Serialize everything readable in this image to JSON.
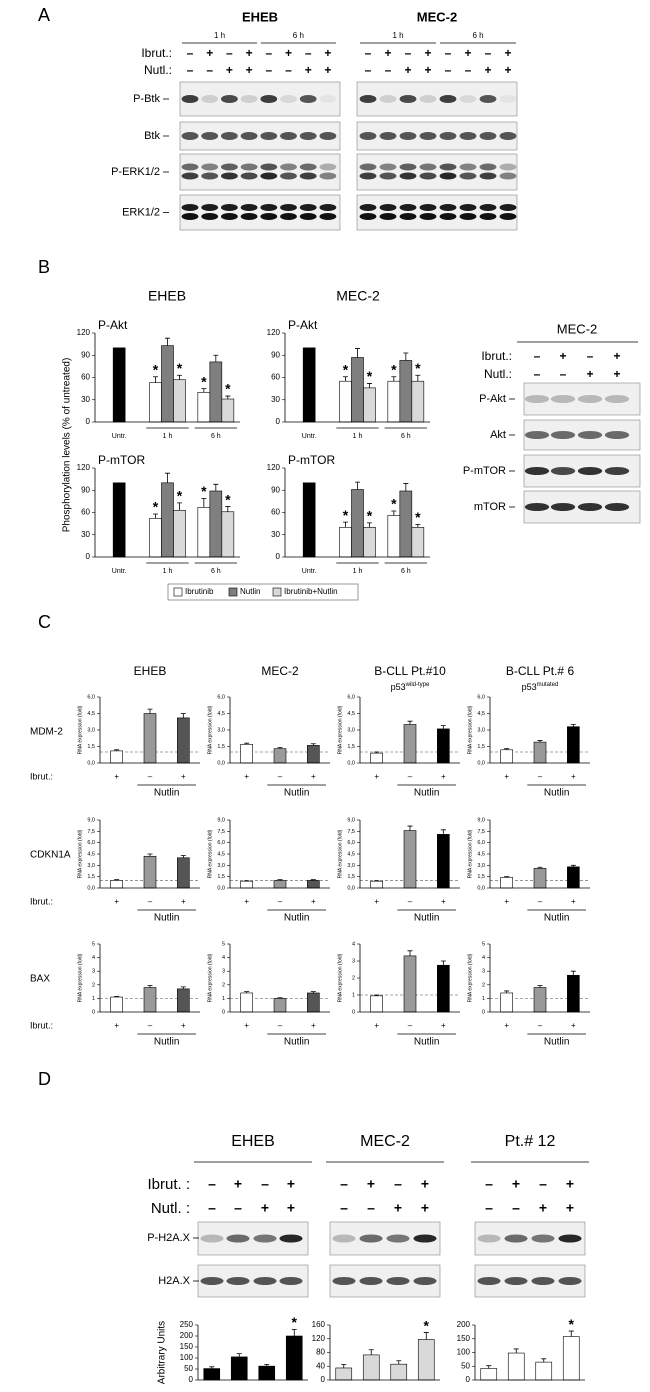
{
  "figure": {
    "significance_mark": "*",
    "panel_a": {
      "letter": "A",
      "cell_lines": [
        "EHEB",
        "MEC-2"
      ],
      "times": [
        "1 h",
        "6 h"
      ],
      "rows": [
        {
          "label": "Ibrut.:",
          "signs": [
            "–",
            "+",
            "–",
            "+",
            "–",
            "+",
            "–",
            "+"
          ]
        },
        {
          "label": "Nutl.:",
          "signs": [
            "–",
            "–",
            "+",
            "+",
            "–",
            "–",
            "+",
            "+"
          ]
        }
      ],
      "blots": [
        "P-Btk",
        "Btk",
        "P-ERK1/2",
        "ERK1/2"
      ]
    },
    "panel_b": {
      "letter": "B",
      "cell_lines": [
        "EHEB",
        "MEC-2"
      ],
      "y_label": "Phosphorylation levels (% of untreated)",
      "blot": {
        "title": "MEC-2",
        "rows": [
          {
            "label": "Ibrut.:",
            "signs": [
              "–",
              "+",
              "–",
              "+"
            ]
          },
          {
            "label": "Nutl.:",
            "signs": [
              "–",
              "–",
              "+",
              "+"
            ]
          }
        ],
        "blots": [
          "P-Akt",
          "Akt",
          "P-mTOR",
          "mTOR"
        ]
      }
    },
    "panel_c": {
      "letter": "C",
      "columns": [
        {
          "title": "EHEB"
        },
        {
          "title": "MEC-2"
        },
        {
          "title": "B-CLL Pt.#10",
          "subtitle": "p53",
          "subtitle_sup": "wild-type"
        },
        {
          "title": "B-CLL Pt.# 6",
          "subtitle": "p53",
          "subtitle_sup": "mutated"
        }
      ],
      "genes": [
        "MDM-2",
        "CDKN1A",
        "BAX"
      ],
      "row_label": "Ibrut.:"
    },
    "panel_d": {
      "letter": "D",
      "cell_lines": [
        "EHEB",
        "MEC-2",
        "Pt.# 12"
      ],
      "rows": [
        {
          "label": "Ibrut. :",
          "signs": [
            "–",
            "+",
            "–",
            "+"
          ]
        },
        {
          "label": "Nutl. :",
          "signs": [
            "–",
            "–",
            "+",
            "+"
          ]
        }
      ],
      "blots": [
        "P-H2A.X",
        "H2A.X"
      ]
    }
  },
  "chart_data": [
    {
      "type": "bar",
      "title": "P-Akt",
      "categories": [
        "Untr.",
        "1 h",
        "6 h"
      ],
      "ylim": [
        0,
        120
      ],
      "yticks": [
        0,
        30,
        60,
        90,
        120
      ],
      "series": [
        {
          "color": "#000000",
          "values": [
            100,
            null,
            null
          ]
        },
        {
          "name": "Ibrutinib",
          "color": "#ffffff",
          "values": [
            null,
            53,
            40
          ],
          "errors": [
            null,
            8,
            5
          ],
          "significant": [
            false,
            true,
            true
          ]
        },
        {
          "name": "Nutlin",
          "color": "#7f7f7f",
          "values": [
            null,
            103,
            81
          ],
          "errors": [
            null,
            10,
            9
          ]
        },
        {
          "name": "Ibrutinib+Nutlin",
          "color": "#d9d9d9",
          "values": [
            null,
            57,
            31
          ],
          "errors": [
            null,
            6,
            4
          ],
          "significant": [
            false,
            true,
            true
          ]
        }
      ]
    },
    {
      "type": "bar",
      "title": "P-Akt",
      "categories": [
        "Untr.",
        "1 h",
        "6 h"
      ],
      "ylim": [
        0,
        120
      ],
      "yticks": [
        0,
        30,
        60,
        90,
        120
      ],
      "series": [
        {
          "color": "#000000",
          "values": [
            100,
            null,
            null
          ]
        },
        {
          "name": "Ibrutinib",
          "color": "#ffffff",
          "values": [
            null,
            55,
            55
          ],
          "errors": [
            null,
            6,
            6
          ],
          "significant": [
            false,
            true,
            true
          ]
        },
        {
          "name": "Nutlin",
          "color": "#7f7f7f",
          "values": [
            null,
            87,
            83
          ],
          "errors": [
            null,
            12,
            10
          ]
        },
        {
          "name": "Ibrutinib+Nutlin",
          "color": "#d9d9d9",
          "values": [
            null,
            46,
            55
          ],
          "errors": [
            null,
            6,
            8
          ],
          "significant": [
            false,
            true,
            true
          ]
        }
      ]
    },
    {
      "type": "bar",
      "title": "P-mTOR",
      "categories": [
        "Untr.",
        "1 h",
        "6 h"
      ],
      "ylim": [
        0,
        120
      ],
      "yticks": [
        0,
        30,
        60,
        90,
        120
      ],
      "series": [
        {
          "color": "#000000",
          "values": [
            100,
            null,
            null
          ]
        },
        {
          "name": "Ibrutinib",
          "color": "#ffffff",
          "values": [
            null,
            52,
            67
          ],
          "errors": [
            null,
            6,
            12
          ],
          "significant": [
            false,
            true,
            true
          ]
        },
        {
          "name": "Nutlin",
          "color": "#7f7f7f",
          "values": [
            null,
            100,
            89
          ],
          "errors": [
            null,
            13,
            9
          ]
        },
        {
          "name": "Ibrutinib+Nutlin",
          "color": "#d9d9d9",
          "values": [
            null,
            63,
            61
          ],
          "errors": [
            null,
            10,
            7
          ],
          "significant": [
            false,
            true,
            true
          ]
        }
      ]
    },
    {
      "type": "bar",
      "title": "P-mTOR",
      "categories": [
        "Untr.",
        "1 h",
        "6 h"
      ],
      "ylim": [
        0,
        120
      ],
      "yticks": [
        0,
        30,
        60,
        90,
        120
      ],
      "series": [
        {
          "color": "#000000",
          "values": [
            100,
            null,
            null
          ]
        },
        {
          "name": "Ibrutinib",
          "color": "#ffffff",
          "values": [
            null,
            40,
            56
          ],
          "errors": [
            null,
            7,
            6
          ],
          "significant": [
            false,
            true,
            true
          ]
        },
        {
          "name": "Nutlin",
          "color": "#7f7f7f",
          "values": [
            null,
            91,
            89
          ],
          "errors": [
            null,
            10,
            10
          ]
        },
        {
          "name": "Ibrutinib+Nutlin",
          "color": "#d9d9d9",
          "values": [
            null,
            40,
            40
          ],
          "errors": [
            null,
            6,
            4
          ],
          "significant": [
            false,
            true,
            true
          ]
        }
      ]
    },
    {
      "type": "bar",
      "ylabel": "RNA expression (fold)",
      "categories": [
        "+",
        "–",
        "+"
      ],
      "group_label": "Nutlin",
      "reference_line": 1,
      "ylim": [
        0,
        6
      ],
      "yticks": [
        {
          "value": 0,
          "label": "0,0"
        },
        {
          "value": 1.5,
          "label": "1,5"
        },
        {
          "value": 3,
          "label": "3,0"
        },
        {
          "value": 4.5,
          "label": "4,5"
        },
        {
          "value": 6,
          "label": "6,0"
        }
      ],
      "values": [
        1.1,
        4.5,
        4.1
      ],
      "errors": [
        0.1,
        0.4,
        0.4
      ],
      "colors": [
        "#ffffff",
        "#999999",
        "#555555"
      ]
    },
    {
      "type": "bar",
      "ylabel": "RNA expression (fold)",
      "categories": [
        "+",
        "–",
        "+"
      ],
      "group_label": "Nutlin",
      "reference_line": 1,
      "ylim": [
        0,
        6
      ],
      "yticks": [
        {
          "value": 0,
          "label": "0,0"
        },
        {
          "value": 1.5,
          "label": "1,5"
        },
        {
          "value": 3,
          "label": "3,0"
        },
        {
          "value": 4.5,
          "label": "4,5"
        },
        {
          "value": 6,
          "label": "6,0"
        }
      ],
      "values": [
        1.7,
        1.3,
        1.6
      ],
      "errors": [
        0.1,
        0.1,
        0.15
      ],
      "colors": [
        "#ffffff",
        "#999999",
        "#555555"
      ]
    },
    {
      "type": "bar",
      "ylabel": "RNA expression (fold)",
      "categories": [
        "+",
        "–",
        "+"
      ],
      "group_label": "Nutlin",
      "reference_line": 1,
      "ylim": [
        0,
        6
      ],
      "yticks": [
        {
          "value": 0,
          "label": "0,0"
        },
        {
          "value": 1.5,
          "label": "1,5"
        },
        {
          "value": 3,
          "label": "3,0"
        },
        {
          "value": 4.5,
          "label": "4,5"
        },
        {
          "value": 6,
          "label": "6,0"
        }
      ],
      "values": [
        0.9,
        3.5,
        3.1
      ],
      "errors": [
        0.1,
        0.3,
        0.3
      ],
      "colors": [
        "#ffffff",
        "#999999",
        "#000000"
      ]
    },
    {
      "type": "bar",
      "ylabel": "RNA expression (fold)",
      "categories": [
        "+",
        "–",
        "+"
      ],
      "group_label": "Nutlin",
      "reference_line": 1,
      "ylim": [
        0,
        6
      ],
      "yticks": [
        {
          "value": 0,
          "label": "0,0"
        },
        {
          "value": 1.5,
          "label": "1,5"
        },
        {
          "value": 3,
          "label": "3,0"
        },
        {
          "value": 4.5,
          "label": "4,5"
        },
        {
          "value": 6,
          "label": "6,0"
        }
      ],
      "values": [
        1.2,
        1.9,
        3.3
      ],
      "errors": [
        0.1,
        0.15,
        0.2
      ],
      "colors": [
        "#ffffff",
        "#999999",
        "#000000"
      ]
    },
    {
      "type": "bar",
      "ylabel": "RNA expression (fold)",
      "categories": [
        "+",
        "–",
        "+"
      ],
      "group_label": "Nutlin",
      "reference_line": 1,
      "ylim": [
        0,
        9
      ],
      "yticks": [
        {
          "value": 0,
          "label": "0,0"
        },
        {
          "value": 1.5,
          "label": "1,5"
        },
        {
          "value": 3,
          "label": "3,0"
        },
        {
          "value": 4.5,
          "label": "4,5"
        },
        {
          "value": 6,
          "label": "6,0"
        },
        {
          "value": 7.5,
          "label": "7,5"
        },
        {
          "value": 9,
          "label": "9,0"
        }
      ],
      "values": [
        1.0,
        4.2,
        4.0
      ],
      "errors": [
        0.1,
        0.3,
        0.3
      ],
      "colors": [
        "#ffffff",
        "#999999",
        "#555555"
      ]
    },
    {
      "type": "bar",
      "ylabel": "RNA expression (fold)",
      "categories": [
        "+",
        "–",
        "+"
      ],
      "group_label": "Nutlin",
      "reference_line": 1,
      "ylim": [
        0,
        9
      ],
      "yticks": [
        {
          "value": 0,
          "label": "0,0"
        },
        {
          "value": 1.5,
          "label": "1,5"
        },
        {
          "value": 3,
          "label": "3,0"
        },
        {
          "value": 4.5,
          "label": "4,5"
        },
        {
          "value": 6,
          "label": "6,0"
        },
        {
          "value": 7.5,
          "label": "7,5"
        },
        {
          "value": 9,
          "label": "9,0"
        }
      ],
      "values": [
        0.9,
        1.0,
        1.0
      ],
      "errors": [
        0.05,
        0.1,
        0.1
      ],
      "colors": [
        "#ffffff",
        "#999999",
        "#555555"
      ]
    },
    {
      "type": "bar",
      "ylabel": "RNA expression (fold)",
      "categories": [
        "+",
        "–",
        "+"
      ],
      "group_label": "Nutlin",
      "reference_line": 1,
      "ylim": [
        0,
        9
      ],
      "yticks": [
        {
          "value": 0,
          "label": "0,0"
        },
        {
          "value": 1.5,
          "label": "1,5"
        },
        {
          "value": 3,
          "label": "3,0"
        },
        {
          "value": 4.5,
          "label": "4,5"
        },
        {
          "value": 6,
          "label": "6,0"
        },
        {
          "value": 7.5,
          "label": "7,5"
        },
        {
          "value": 9,
          "label": "9,0"
        }
      ],
      "values": [
        0.9,
        7.6,
        7.1
      ],
      "errors": [
        0.05,
        0.6,
        0.6
      ],
      "colors": [
        "#ffffff",
        "#999999",
        "#000000"
      ]
    },
    {
      "type": "bar",
      "ylabel": "RNA expression (fold)",
      "categories": [
        "+",
        "–",
        "+"
      ],
      "group_label": "Nutlin",
      "reference_line": 1,
      "ylim": [
        0,
        9
      ],
      "yticks": [
        {
          "value": 0,
          "label": "0,0"
        },
        {
          "value": 1.5,
          "label": "1,5"
        },
        {
          "value": 3,
          "label": "3,0"
        },
        {
          "value": 4.5,
          "label": "4,5"
        },
        {
          "value": 6,
          "label": "6,0"
        },
        {
          "value": 7.5,
          "label": "7,5"
        },
        {
          "value": 9,
          "label": "9,0"
        }
      ],
      "values": [
        1.4,
        2.6,
        2.8
      ],
      "errors": [
        0.1,
        0.15,
        0.2
      ],
      "colors": [
        "#ffffff",
        "#999999",
        "#000000"
      ]
    },
    {
      "type": "bar",
      "ylabel": "RNA expression (fold)",
      "categories": [
        "+",
        "–",
        "+"
      ],
      "group_label": "Nutlin",
      "reference_line": 1,
      "ylim": [
        0,
        5
      ],
      "yticks": [
        0,
        1,
        2,
        3,
        4,
        5
      ],
      "values": [
        1.1,
        1.8,
        1.7
      ],
      "errors": [
        0.05,
        0.15,
        0.15
      ],
      "colors": [
        "#ffffff",
        "#999999",
        "#555555"
      ]
    },
    {
      "type": "bar",
      "ylabel": "RNA expression (fold)",
      "categories": [
        "+",
        "–",
        "+"
      ],
      "group_label": "Nutlin",
      "reference_line": 1,
      "ylim": [
        0,
        5
      ],
      "yticks": [
        0,
        1,
        2,
        3,
        4,
        5
      ],
      "values": [
        1.4,
        1.0,
        1.4
      ],
      "errors": [
        0.1,
        0.05,
        0.1
      ],
      "colors": [
        "#ffffff",
        "#999999",
        "#555555"
      ]
    },
    {
      "type": "bar",
      "ylabel": "RNA expression (fold)",
      "categories": [
        "+",
        "–",
        "+"
      ],
      "group_label": "Nutlin",
      "reference_line": 1,
      "ylim": [
        0,
        4
      ],
      "yticks": [
        0,
        1,
        2,
        3,
        4
      ],
      "values": [
        0.95,
        3.3,
        2.75
      ],
      "errors": [
        0.05,
        0.3,
        0.25
      ],
      "colors": [
        "#ffffff",
        "#999999",
        "#000000"
      ]
    },
    {
      "type": "bar",
      "ylabel": "RNA expression (fold)",
      "categories": [
        "+",
        "–",
        "+"
      ],
      "group_label": "Nutlin",
      "reference_line": 1,
      "ylim": [
        0,
        5
      ],
      "yticks": [
        0,
        1,
        2,
        3,
        4,
        5
      ],
      "values": [
        1.4,
        1.8,
        2.7
      ],
      "errors": [
        0.15,
        0.15,
        0.3
      ],
      "colors": [
        "#ffffff",
        "#999999",
        "#000000"
      ]
    },
    {
      "type": "bar",
      "ylabel": "Arbitrary Units",
      "ylim": [
        0,
        250
      ],
      "yticks": [
        0,
        50,
        100,
        150,
        200,
        250
      ],
      "values": [
        52,
        105,
        63,
        200
      ],
      "errors": [
        8,
        15,
        8,
        30
      ],
      "color": "#000000",
      "significant": [
        false,
        false,
        false,
        true
      ]
    },
    {
      "type": "bar",
      "ylim": [
        0,
        160
      ],
      "yticks": [
        0,
        40,
        80,
        120,
        160
      ],
      "values": [
        35,
        73,
        46,
        118
      ],
      "errors": [
        10,
        15,
        10,
        20
      ],
      "color": "#d9d9d9",
      "significant": [
        false,
        false,
        false,
        true
      ]
    },
    {
      "type": "bar",
      "ylim": [
        0,
        200
      ],
      "yticks": [
        0,
        50,
        100,
        150,
        200
      ],
      "values": [
        42,
        98,
        65,
        158
      ],
      "errors": [
        10,
        15,
        12,
        20
      ],
      "color": "#ffffff",
      "significant": [
        false,
        false,
        false,
        true
      ]
    }
  ]
}
